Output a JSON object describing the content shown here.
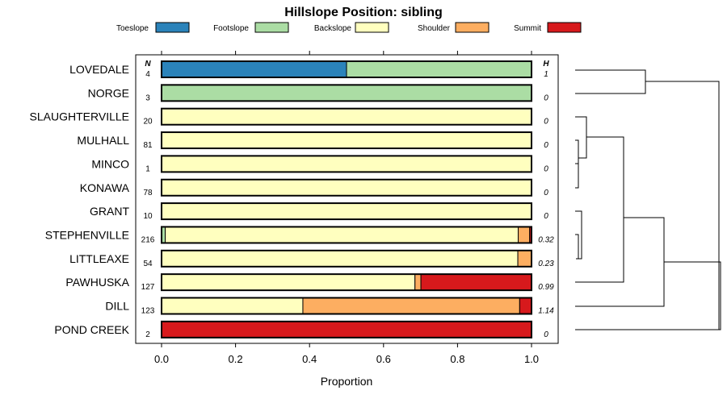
{
  "chart_data": {
    "type": "bar",
    "stacked": true,
    "orientation": "horizontal",
    "title": "Hillslope Position: sibling",
    "xlabel": "Proportion",
    "xlim": [
      0,
      1
    ],
    "xticks": [
      "0.0",
      "0.2",
      "0.4",
      "0.6",
      "0.8",
      "1.0"
    ],
    "n_header": "N",
    "h_header": "H",
    "legend": [
      {
        "name": "Toeslope",
        "color": "#2b83ba"
      },
      {
        "name": "Footslope",
        "color": "#abdda4"
      },
      {
        "name": "Backslope",
        "color": "#ffffbf"
      },
      {
        "name": "Shoulder",
        "color": "#fdae61"
      },
      {
        "name": "Summit",
        "color": "#d7191c"
      }
    ],
    "categories": [
      "LOVEDALE",
      "NORGE",
      "SLAUGHTERVILLE",
      "MULHALL",
      "MINCO",
      "KONAWA",
      "GRANT",
      "STEPHENVILLE",
      "LITTLEAXE",
      "PAWHUSKA",
      "DILL",
      "POND CREEK"
    ],
    "n": [
      "4",
      "3",
      "20",
      "81",
      "1",
      "78",
      "10",
      "216",
      "54",
      "127",
      "123",
      "2"
    ],
    "h": [
      "1",
      "0",
      "0",
      "0",
      "0",
      "0",
      "0",
      "0.32",
      "0.23",
      "0.99",
      "1.14",
      "0"
    ],
    "series": [
      {
        "name": "Toeslope",
        "values": [
          0.5,
          0,
          0,
          0,
          0,
          0,
          0,
          0,
          0,
          0,
          0,
          0
        ]
      },
      {
        "name": "Footslope",
        "values": [
          0.5,
          1,
          0,
          0,
          0,
          0,
          0,
          0.01,
          0,
          0,
          0,
          0
        ]
      },
      {
        "name": "Backslope",
        "values": [
          0,
          0,
          1,
          1,
          1,
          1,
          1,
          0.954,
          0.963,
          0.685,
          0.382,
          0
        ]
      },
      {
        "name": "Shoulder",
        "values": [
          0,
          0,
          0,
          0,
          0,
          0,
          0,
          0.031,
          0.037,
          0.016,
          0.586,
          0
        ]
      },
      {
        "name": "Summit",
        "values": [
          0,
          0,
          0,
          0,
          0,
          0,
          0,
          0.005,
          0,
          0.299,
          0.032,
          1
        ]
      }
    ],
    "dendrogram": "hierarchical clustering of rows (shown to the right of the plot)"
  }
}
